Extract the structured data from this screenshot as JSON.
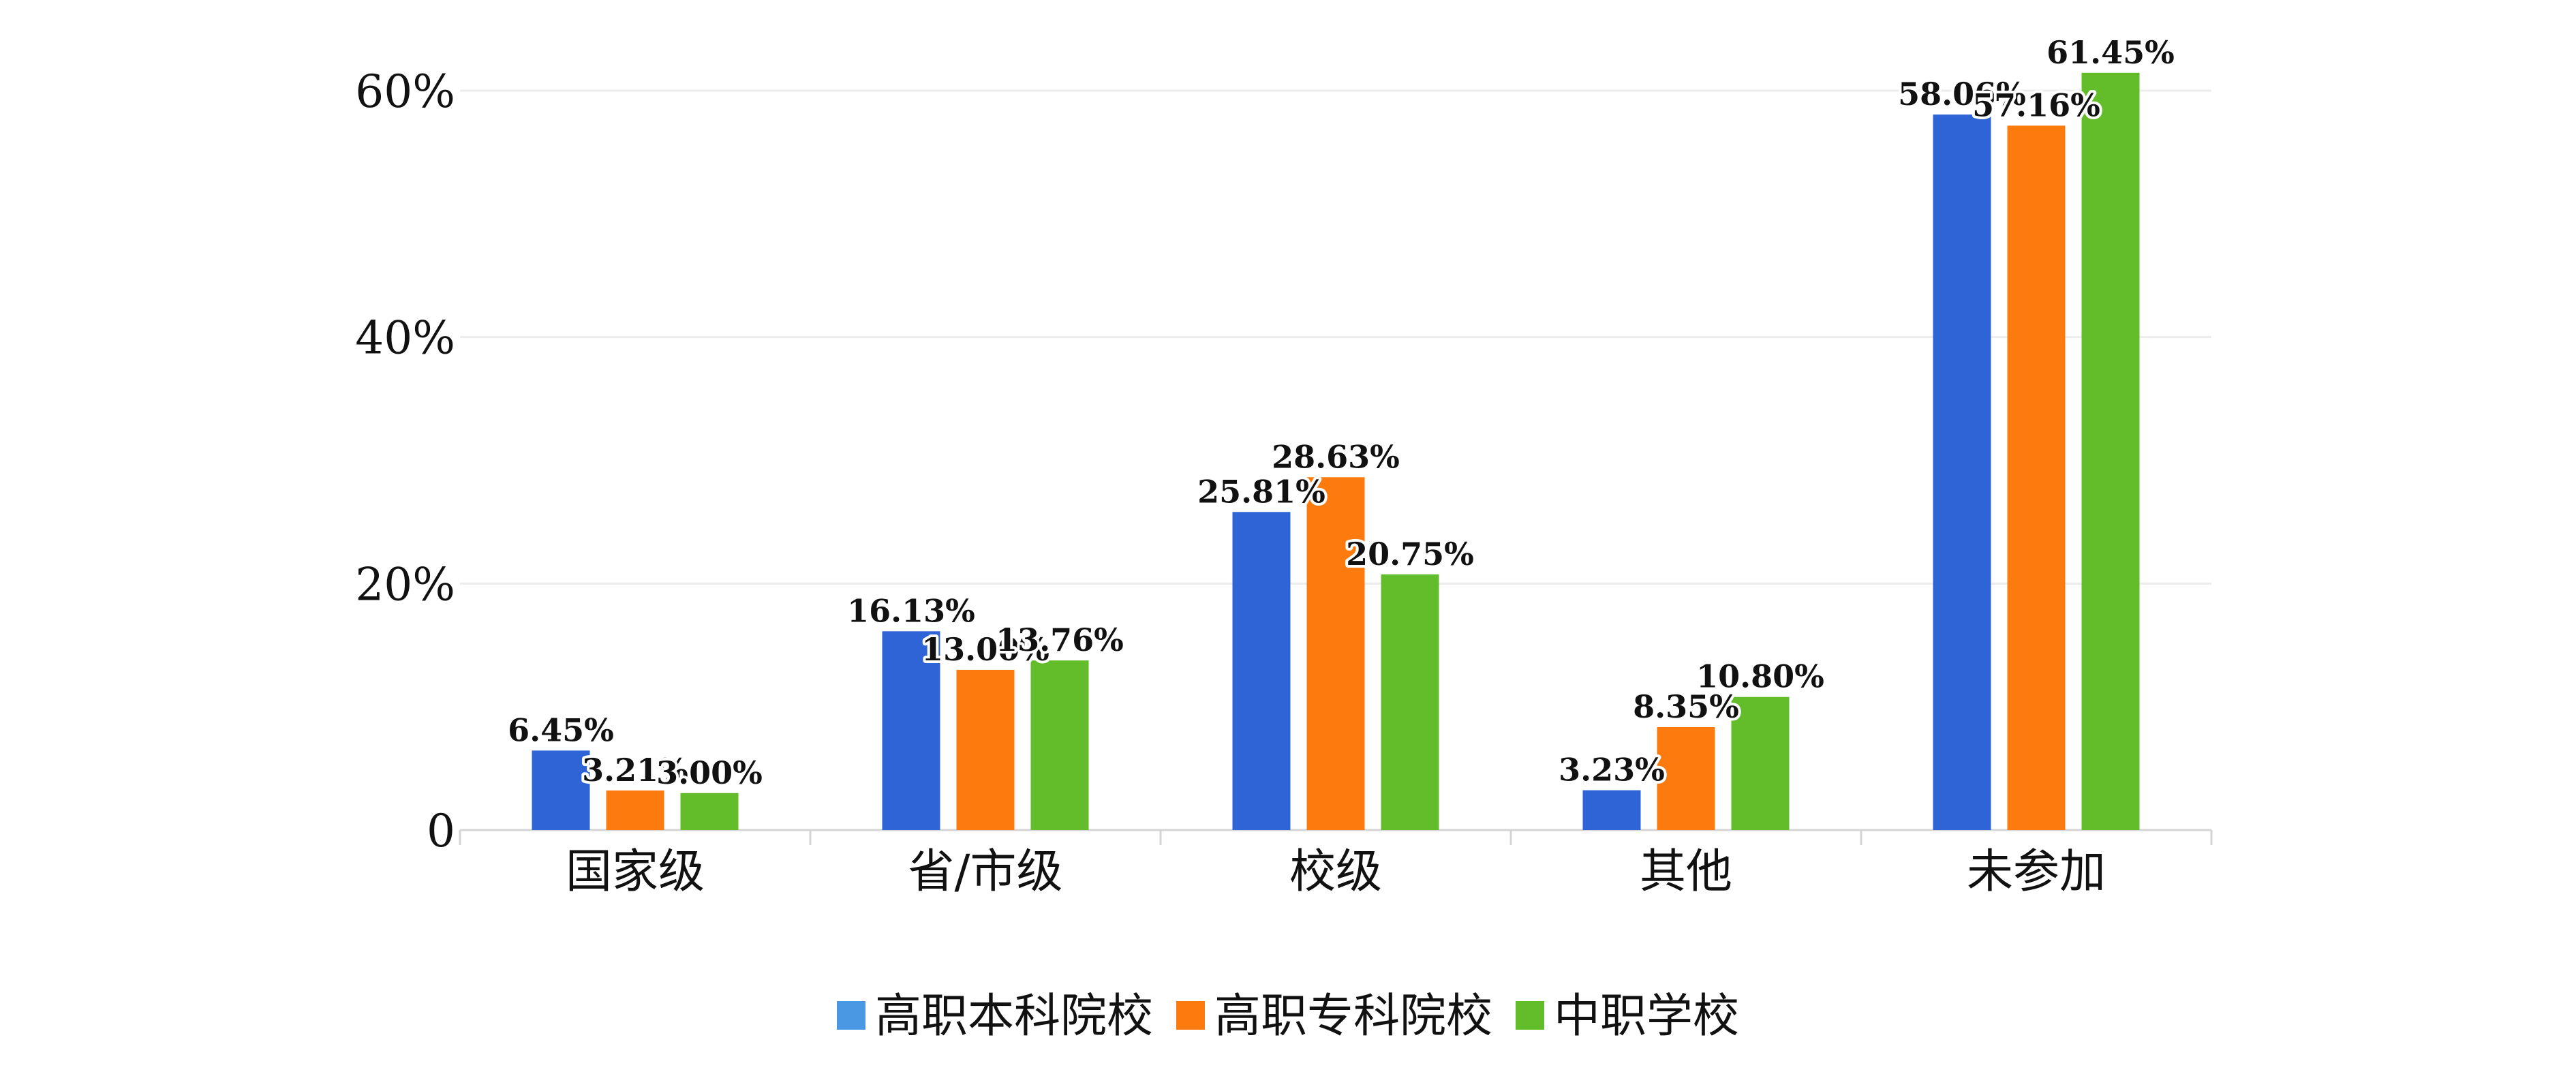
{
  "chart_data": {
    "type": "bar",
    "categories": [
      "国家级",
      "省/市级",
      "校级",
      "其他",
      "未参加"
    ],
    "series": [
      {
        "name": "高职本科院校",
        "color": "#2F64D6",
        "values": [
          6.45,
          16.13,
          25.81,
          3.23,
          58.06
        ],
        "labels": [
          "6.45%",
          "16.13%",
          "25.81%",
          "3.23%",
          "58.06%"
        ]
      },
      {
        "name": "高职专科院校",
        "color": "#FC7A0E",
        "values": [
          3.21,
          13.0,
          28.63,
          8.35,
          57.16
        ],
        "labels": [
          "3.21%",
          "13.00%",
          "28.63%",
          "8.35%",
          "57.16%"
        ]
      },
      {
        "name": "中职学校",
        "color": "#63BD2B",
        "values": [
          3.0,
          13.76,
          20.75,
          10.8,
          61.45
        ],
        "labels": [
          "3.00%",
          "13.76%",
          "20.75%",
          "10.80%",
          "61.45%"
        ]
      }
    ],
    "legend_colors": [
      "#4A97E3",
      "#FC7A0E",
      "#63BD2B"
    ],
    "ylim": [
      0,
      60
    ],
    "yticks": [
      0,
      20,
      40,
      60
    ],
    "ytick_labels": [
      "0",
      "20%",
      "40%",
      "60%"
    ],
    "grid": true,
    "legend_position": "bottom"
  }
}
